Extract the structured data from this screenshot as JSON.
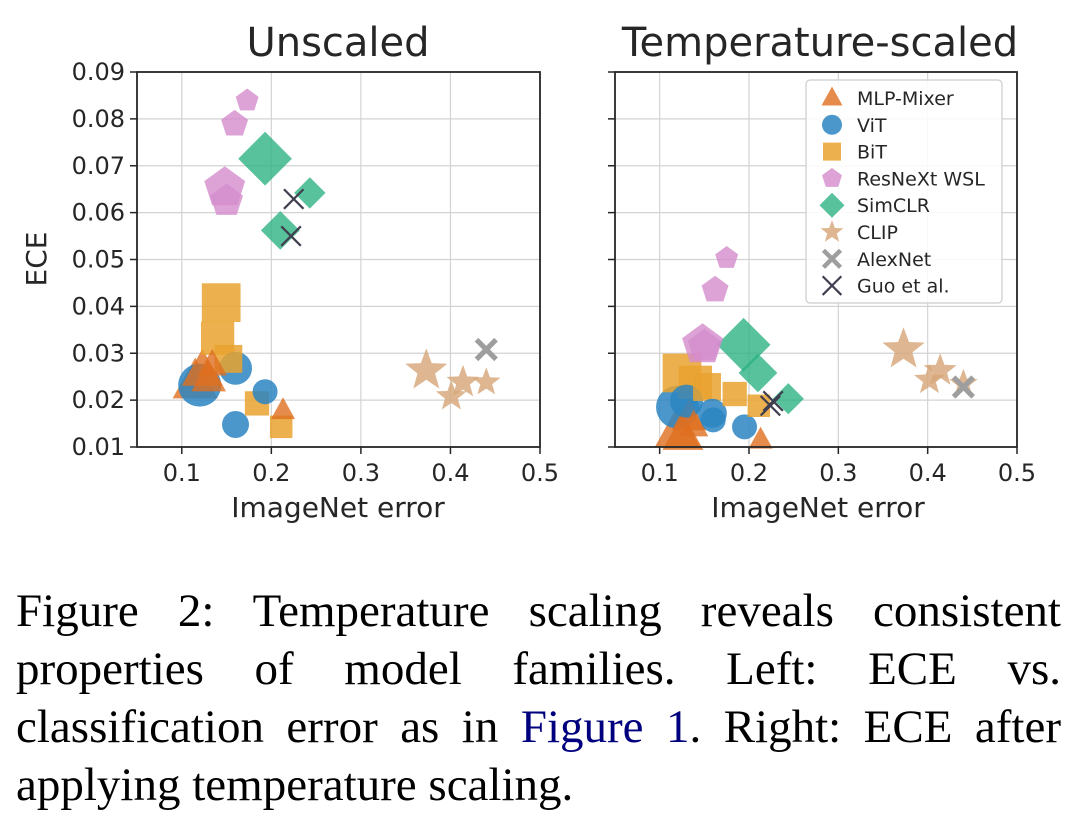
{
  "chart_data": [
    {
      "type": "scatter",
      "title": "Unscaled",
      "xlabel": "ImageNet error",
      "ylabel": "ECE",
      "xlim": [
        0.05,
        0.5
      ],
      "ylim": [
        0.01,
        0.09
      ],
      "xticks": [
        "0.1",
        "0.2",
        "0.3",
        "0.4",
        "0.5"
      ],
      "yticks": [
        "0.01",
        "0.02",
        "0.03",
        "0.04",
        "0.05",
        "0.06",
        "0.07",
        "0.08",
        "0.09"
      ],
      "grid": true,
      "series": [
        {
          "name": "MLP-Mixer",
          "points": [
            [
              0.115,
              0.0238,
              3
            ],
            [
              0.123,
              0.0262,
              2.6
            ],
            [
              0.13,
              0.0245,
              2
            ],
            [
              0.134,
              0.0275,
              1.5
            ],
            [
              0.213,
              0.0178,
              1
            ]
          ]
        },
        {
          "name": "ViT",
          "points": [
            [
              0.12,
              0.0232,
              3
            ],
            [
              0.16,
              0.0268,
              2
            ],
            [
              0.193,
              0.0218,
              1.2
            ],
            [
              0.16,
              0.0148,
              1.4
            ]
          ]
        },
        {
          "name": "BiT",
          "points": [
            [
              0.144,
              0.0408,
              3
            ],
            [
              0.14,
              0.0332,
              2.4
            ],
            [
              0.152,
              0.0288,
              1.8
            ],
            [
              0.184,
              0.0193,
              1.4
            ],
            [
              0.211,
              0.0143,
              1.2
            ]
          ]
        },
        {
          "name": "ResNeXt WSL",
          "points": [
            [
              0.148,
              0.0653,
              2.8
            ],
            [
              0.15,
              0.0625,
              2
            ],
            [
              0.159,
              0.0789,
              1.4
            ],
            [
              0.173,
              0.0839,
              1
            ]
          ]
        },
        {
          "name": "SimCLR",
          "points": [
            [
              0.193,
              0.0715,
              3
            ],
            [
              0.21,
              0.0562,
              1.8
            ],
            [
              0.243,
              0.0642,
              1.2
            ]
          ]
        },
        {
          "name": "CLIP",
          "points": [
            [
              0.373,
              0.0263,
              2.4
            ],
            [
              0.401,
              0.0208,
              1.4
            ],
            [
              0.414,
              0.0238,
              1.6
            ],
            [
              0.44,
              0.0238,
              1.2
            ]
          ]
        },
        {
          "name": "AlexNet",
          "points": [
            [
              0.44,
              0.0308,
              1
            ]
          ]
        },
        {
          "name": "Guo et al.",
          "points": [
            [
              0.225,
              0.0629,
              1
            ],
            [
              0.222,
              0.055,
              1
            ]
          ]
        }
      ]
    },
    {
      "type": "scatter",
      "title": "Temperature-scaled",
      "xlabel": "ImageNet error",
      "ylabel": "",
      "xlim": [
        0.05,
        0.5
      ],
      "ylim": [
        0.01,
        0.09
      ],
      "xticks": [
        "0.1",
        "0.2",
        "0.3",
        "0.4",
        "0.5"
      ],
      "grid": true,
      "legend_position": "top-right",
      "series": [
        {
          "name": "MLP-Mixer",
          "points": [
            [
              0.12,
              0.0135,
              3
            ],
            [
              0.126,
              0.0125,
              2.6
            ],
            [
              0.133,
              0.0162,
              2
            ],
            [
              0.138,
              0.0145,
              1.5
            ],
            [
              0.213,
              0.0115,
              1
            ]
          ]
        },
        {
          "name": "ViT",
          "points": [
            [
              0.12,
              0.0185,
              3
            ],
            [
              0.13,
              0.0198,
              2
            ],
            [
              0.159,
              0.0172,
              1.6
            ],
            [
              0.16,
              0.0158,
              1.2
            ],
            [
              0.195,
              0.0143,
              1.2
            ]
          ]
        },
        {
          "name": "BiT",
          "points": [
            [
              0.125,
              0.0258,
              3
            ],
            [
              0.14,
              0.0238,
              2.4
            ],
            [
              0.153,
              0.0228,
              1.8
            ],
            [
              0.184,
              0.0213,
              1.4
            ],
            [
              0.211,
              0.0188,
              1.2
            ]
          ]
        },
        {
          "name": "ResNeXt WSL",
          "points": [
            [
              0.148,
              0.0318,
              2.8
            ],
            [
              0.15,
              0.0315,
              2
            ],
            [
              0.162,
              0.0435,
              1.4
            ],
            [
              0.175,
              0.0503,
              1
            ]
          ]
        },
        {
          "name": "SimCLR",
          "points": [
            [
              0.194,
              0.0318,
              3
            ],
            [
              0.21,
              0.0258,
              1.8
            ],
            [
              0.244,
              0.0203,
              1.2
            ]
          ]
        },
        {
          "name": "CLIP",
          "points": [
            [
              0.373,
              0.0308,
              2.4
            ],
            [
              0.402,
              0.0243,
              1.4
            ],
            [
              0.414,
              0.0263,
              1.6
            ],
            [
              0.44,
              0.0235,
              1.2
            ]
          ]
        },
        {
          "name": "AlexNet",
          "points": [
            [
              0.44,
              0.0228,
              1
            ]
          ]
        },
        {
          "name": "Guo et al.",
          "points": [
            [
              0.227,
              0.0198,
              1
            ],
            [
              0.224,
              0.0188,
              1
            ]
          ]
        }
      ]
    }
  ],
  "legend": [
    {
      "label": "MLP-Mixer",
      "marker": "triangle",
      "color": "#de6f1f"
    },
    {
      "label": "ViT",
      "marker": "circle",
      "color": "#2b85c2"
    },
    {
      "label": "BiT",
      "marker": "square",
      "color": "#e9a22f"
    },
    {
      "label": "ResNeXt WSL",
      "marker": "pentagon",
      "color": "#d48ccd"
    },
    {
      "label": "SimCLR",
      "marker": "diamond",
      "color": "#2db383"
    },
    {
      "label": "CLIP",
      "marker": "star",
      "color": "#d6a577"
    },
    {
      "label": "AlexNet",
      "marker": "thick-x",
      "color": "#9e9e9e"
    },
    {
      "label": "Guo et al.",
      "marker": "thin-x",
      "color": "#3f3f4f"
    }
  ],
  "caption": {
    "figure_label": "Figure 2:",
    "text_before_ref": " Temperature scaling reveals consistent properties of model families. Left: ECE vs. classification error as in ",
    "ref": "Figure 1",
    "text_after_ref": ". Right: ECE after applying temperature scaling."
  }
}
